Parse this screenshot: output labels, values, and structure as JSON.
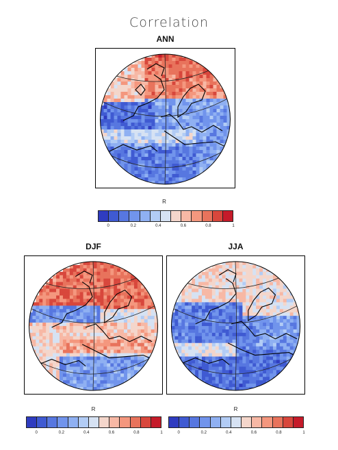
{
  "title": "Correlation",
  "colors": [
    "#2f3cc0",
    "#3f5ad2",
    "#5777e0",
    "#7194ec",
    "#8fb0f2",
    "#b2ccf5",
    "#d6e2f3",
    "#f4d6cb",
    "#f7b8a5",
    "#f4977e",
    "#e8735c",
    "#d8473c",
    "#c51b2a"
  ],
  "panels": [
    {
      "id": "ann",
      "label": "ANN",
      "pattern": "ann"
    },
    {
      "id": "djf",
      "label": "DJF",
      "pattern": "djf"
    },
    {
      "id": "jja",
      "label": "JJA",
      "pattern": "jja"
    }
  ],
  "colorbars": [
    {
      "id": "ann",
      "label": "R",
      "ticks": [
        "0",
        "0.2",
        "0.4",
        "0.6",
        "0.8",
        "1"
      ]
    },
    {
      "id": "djf",
      "label": "R",
      "ticks": [
        "0",
        "0.2",
        "0.4",
        "0.6",
        "0.8",
        "1"
      ]
    },
    {
      "id": "jja",
      "label": "R",
      "ticks": [
        "0",
        "0.2",
        "0.4",
        "0.6",
        "0.8",
        "1"
      ]
    }
  ]
}
